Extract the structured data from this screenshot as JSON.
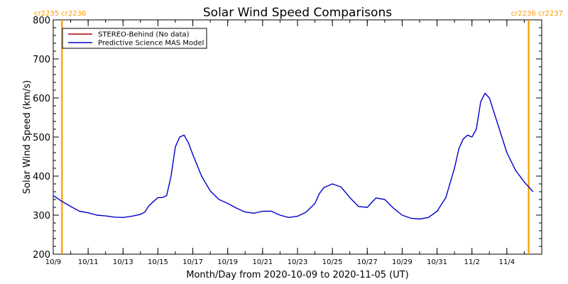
{
  "chart_data": {
    "type": "line",
    "title": "Solar Wind Speed Comparisons",
    "xlabel": "Month/Day from 2020-10-09 to 2020-11-05 (UT)",
    "ylabel": "Solar Wind Speed (km/s)",
    "xlim": [
      "2020-10-09",
      "2020-11-05"
    ],
    "ylim": [
      200,
      800
    ],
    "yticks": [
      200,
      300,
      400,
      500,
      600,
      700,
      800
    ],
    "xticks": [
      {
        "date": "2020-10-09",
        "label": "10/9"
      },
      {
        "date": "2020-10-11",
        "label": "10/11"
      },
      {
        "date": "2020-10-13",
        "label": "10/13"
      },
      {
        "date": "2020-10-15",
        "label": "10/15"
      },
      {
        "date": "2020-10-17",
        "label": "10/17"
      },
      {
        "date": "2020-10-19",
        "label": "10/19"
      },
      {
        "date": "2020-10-21",
        "label": "10/21"
      },
      {
        "date": "2020-10-23",
        "label": "10/23"
      },
      {
        "date": "2020-10-25",
        "label": "10/25"
      },
      {
        "date": "2020-10-27",
        "label": "10/27"
      },
      {
        "date": "2020-10-29",
        "label": "10/29"
      },
      {
        "date": "2020-10-31",
        "label": "10/31"
      },
      {
        "date": "2020-11-02",
        "label": "11/2"
      },
      {
        "date": "2020-11-04",
        "label": "11/4"
      }
    ],
    "carrington_markers": [
      {
        "date": "2020-10-09 12:00",
        "label_left": "cr2235",
        "label_right": "cr2236",
        "side": "left"
      },
      {
        "date": "2020-11-05 06:00",
        "label_left": "cr2236",
        "label_right": "cr2237",
        "side": "right"
      }
    ],
    "legend_position": "top-left",
    "series": [
      {
        "name": "STEREO-Behind (No data)",
        "color": "#b00000",
        "x": [],
        "values": []
      },
      {
        "name": "Predictive Science MAS Model",
        "color": "#0000cc",
        "x": [
          "2020-10-09 00:00",
          "2020-10-09 06:00",
          "2020-10-09 12:00",
          "2020-10-09 18:00",
          "2020-10-10 00:00",
          "2020-10-10 12:00",
          "2020-10-11 00:00",
          "2020-10-11 12:00",
          "2020-10-12 00:00",
          "2020-10-12 12:00",
          "2020-10-13 00:00",
          "2020-10-13 12:00",
          "2020-10-14 00:00",
          "2020-10-14 06:00",
          "2020-10-14 12:00",
          "2020-10-15 00:00",
          "2020-10-15 06:00",
          "2020-10-15 12:00",
          "2020-10-15 18:00",
          "2020-10-16 00:00",
          "2020-10-16 06:00",
          "2020-10-16 12:00",
          "2020-10-16 18:00",
          "2020-10-17 00:00",
          "2020-10-17 12:00",
          "2020-10-18 00:00",
          "2020-10-18 12:00",
          "2020-10-19 00:00",
          "2020-10-19 12:00",
          "2020-10-20 00:00",
          "2020-10-20 12:00",
          "2020-10-21 00:00",
          "2020-10-21 12:00",
          "2020-10-22 00:00",
          "2020-10-22 12:00",
          "2020-10-23 00:00",
          "2020-10-23 12:00",
          "2020-10-24 00:00",
          "2020-10-24 06:00",
          "2020-10-24 12:00",
          "2020-10-25 00:00",
          "2020-10-25 12:00",
          "2020-10-26 00:00",
          "2020-10-26 12:00",
          "2020-10-27 00:00",
          "2020-10-27 06:00",
          "2020-10-27 12:00",
          "2020-10-28 00:00",
          "2020-10-28 12:00",
          "2020-10-29 00:00",
          "2020-10-29 12:00",
          "2020-10-30 00:00",
          "2020-10-30 12:00",
          "2020-10-31 00:00",
          "2020-10-31 12:00",
          "2020-11-01 00:00",
          "2020-11-01 06:00",
          "2020-11-01 12:00",
          "2020-11-01 18:00",
          "2020-11-02 00:00",
          "2020-11-02 06:00",
          "2020-11-02 12:00",
          "2020-11-02 18:00",
          "2020-11-03 00:00",
          "2020-11-03 12:00",
          "2020-11-04 00:00",
          "2020-11-04 12:00",
          "2020-11-05 00:00",
          "2020-11-05 12:00"
        ],
        "values": [
          350,
          343,
          335,
          329,
          322,
          310,
          306,
          300,
          298,
          295,
          294,
          297,
          302,
          308,
          325,
          345,
          345,
          350,
          400,
          475,
          500,
          505,
          485,
          455,
          400,
          362,
          340,
          330,
          318,
          308,
          305,
          310,
          310,
          300,
          294,
          297,
          308,
          330,
          355,
          370,
          380,
          372,
          345,
          322,
          320,
          332,
          344,
          340,
          318,
          300,
          292,
          290,
          294,
          310,
          345,
          420,
          470,
          495,
          505,
          500,
          520,
          590,
          612,
          600,
          530,
          460,
          415,
          385,
          360
        ]
      }
    ]
  }
}
